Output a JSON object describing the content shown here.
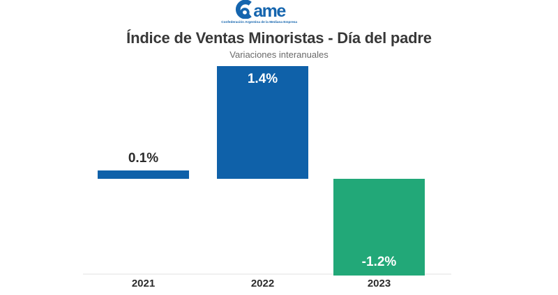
{
  "logo": {
    "brand": "Came",
    "brand_rest": "ame",
    "tagline": "Confederación Argentina de la Mediana Empresa",
    "color": "#1565ae"
  },
  "chart_data": {
    "type": "bar",
    "title": "Índice de Ventas Minoristas - Día del padre",
    "subtitle": "Variaciones interanuales",
    "categories": [
      "2021",
      "2022",
      "2023"
    ],
    "values": [
      0.1,
      1.4,
      -1.2
    ],
    "value_labels": [
      "0.1%",
      "1.4%",
      "-1.2%"
    ],
    "bar_colors": [
      "#0f61a9",
      "#0f61a9",
      "#22a878"
    ],
    "label_positions": [
      "above",
      "inside-top",
      "inside-bottom"
    ],
    "label_colors": [
      "#2b2b2b",
      "#ffffff",
      "#ffffff"
    ],
    "baseline_value": 0,
    "ylim": [
      -1.2,
      1.4
    ],
    "xlabel": "",
    "ylabel": "",
    "legend": "none",
    "grid": "single-bottom-line",
    "gridline_color": "#f0f0f0"
  }
}
